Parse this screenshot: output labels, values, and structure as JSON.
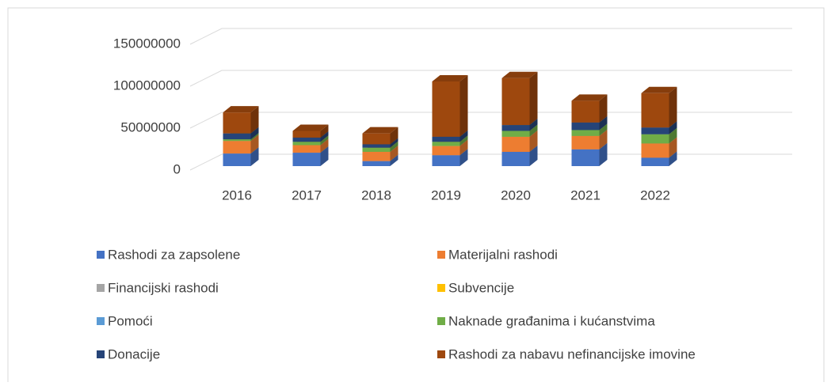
{
  "chart_data": {
    "type": "bar3d_stacked",
    "categories": [
      "2016",
      "2017",
      "2018",
      "2019",
      "2020",
      "2021",
      "2022"
    ],
    "series": [
      {
        "name": "Rashodi za zapsolene",
        "color": "#4472c4",
        "values": [
          15000000,
          16000000,
          6000000,
          13000000,
          17000000,
          20000000,
          10000000
        ]
      },
      {
        "name": "Materijalni rashodi",
        "color": "#ed7d31",
        "values": [
          15000000,
          9000000,
          11000000,
          11000000,
          18000000,
          16000000,
          17000000
        ]
      },
      {
        "name": "Financijski rashodi",
        "color": "#a5a5a5",
        "values": [
          0,
          0,
          0,
          0,
          0,
          0,
          0
        ]
      },
      {
        "name": "Subvencije",
        "color": "#ffc000",
        "values": [
          0,
          0,
          0,
          0,
          0,
          0,
          0
        ]
      },
      {
        "name": "Pomoći",
        "color": "#5b9bd5",
        "values": [
          0,
          0,
          0,
          0,
          0,
          0,
          0
        ]
      },
      {
        "name": "Naknade građanima i kućanstvima",
        "color": "#70ad47",
        "values": [
          2000000,
          4000000,
          5000000,
          5000000,
          7000000,
          7000000,
          11000000
        ]
      },
      {
        "name": "Donacije",
        "color": "#264478",
        "values": [
          7000000,
          5000000,
          4000000,
          6000000,
          7000000,
          9000000,
          8000000
        ]
      },
      {
        "name": "Rashodi za nabavu nefinancijske imovine",
        "color": "#9e480e",
        "values": [
          25000000,
          8000000,
          13000000,
          66000000,
          56000000,
          26000000,
          41000000
        ]
      }
    ],
    "ylim": [
      0,
      150000000
    ],
    "yticks": [
      0,
      50000000,
      100000000,
      150000000
    ],
    "grid": true,
    "legend": "bottom"
  }
}
